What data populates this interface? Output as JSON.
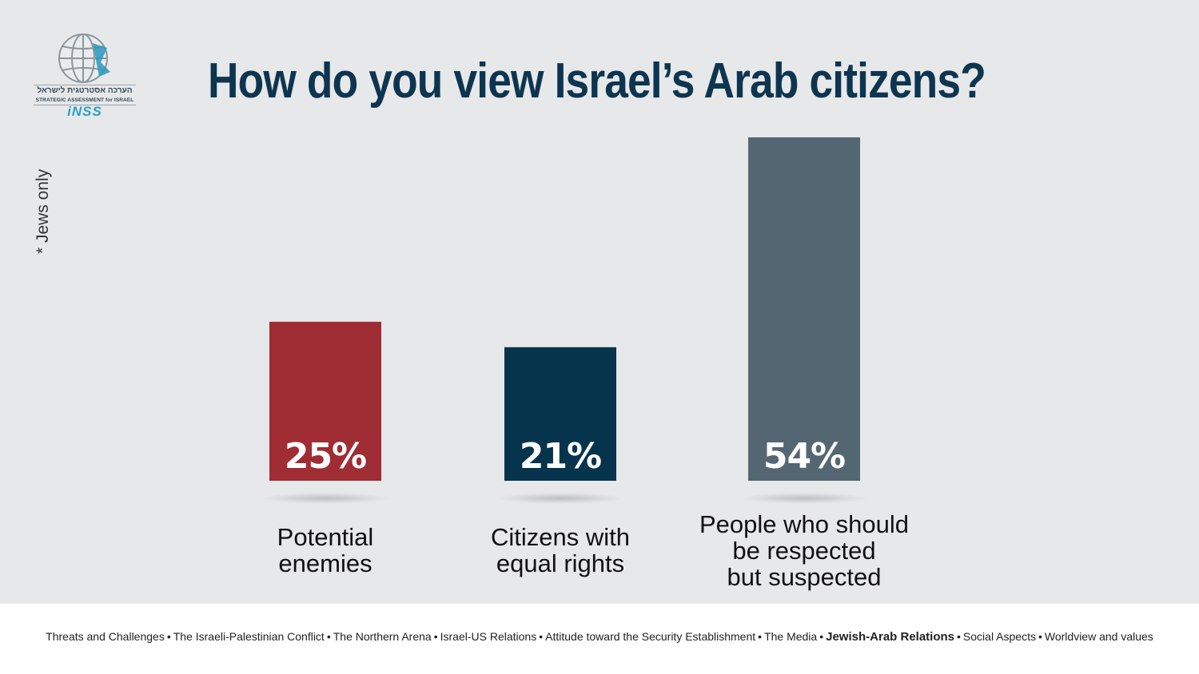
{
  "title": "How do you view Israel’s Arab citizens?",
  "note": "* Jews only",
  "logo": {
    "hebrew": "הערכה אסטרטגית לישראל",
    "english": "STRATEGIC ASSESSMENT for ISRAEL",
    "brand": "iNSS"
  },
  "chart_data": {
    "type": "bar",
    "categories": [
      [
        "Potential",
        "enemies"
      ],
      [
        "Citizens with",
        "equal rights"
      ],
      [
        "People who should",
        "be respected",
        "but suspected"
      ]
    ],
    "values": [
      25,
      21,
      54
    ],
    "value_labels": [
      "25%",
      "21%",
      "54%"
    ],
    "colors": [
      "#a02c34",
      "#06344d",
      "#546672"
    ],
    "ylim": [
      0,
      54
    ],
    "title": "How do you view Israel’s Arab citizens?",
    "xlabel": "",
    "ylabel": "",
    "grid": false,
    "legend": "none"
  },
  "footer": {
    "items": [
      {
        "label": "Threats and Challenges",
        "active": false
      },
      {
        "label": "The Israeli-Palestinian Conflict",
        "active": false
      },
      {
        "label": "The Northern  Arena",
        "active": false
      },
      {
        "label": "Israel-US Relations",
        "active": false
      },
      {
        "label": "Attitude toward the Security Establishment",
        "active": false
      },
      {
        "label": "The Media",
        "active": false
      },
      {
        "label": "Jewish-Arab Relations",
        "active": true
      },
      {
        "label": "Social Aspects",
        "active": false
      },
      {
        "label": "Worldview and values",
        "active": false
      }
    ],
    "separator": "•"
  }
}
